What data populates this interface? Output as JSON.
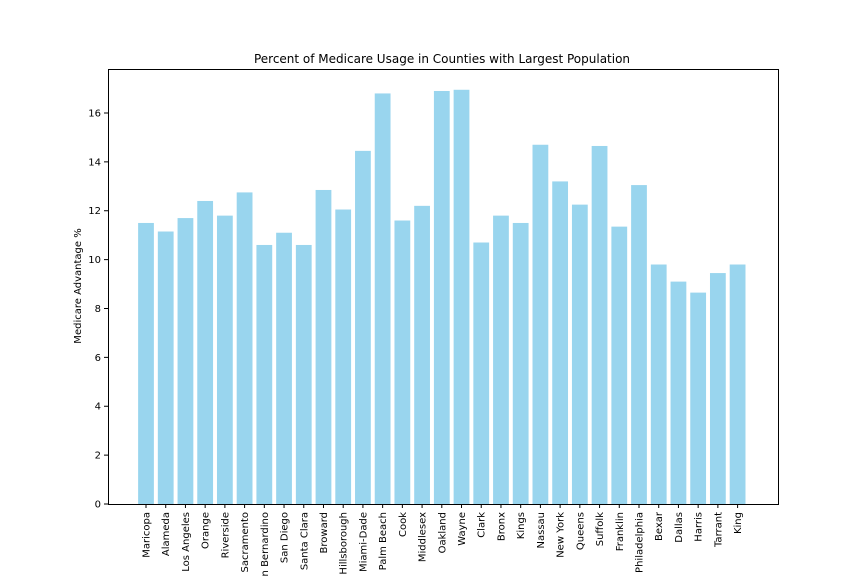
{
  "chart_data": {
    "type": "bar",
    "title": "Percent of Medicare Usage in Counties with Largest Population",
    "xlabel": "",
    "ylabel": "Medicare Advantage %",
    "ylim": [
      0,
      17.8
    ],
    "yticks": [
      0,
      2,
      4,
      6,
      8,
      10,
      12,
      14,
      16
    ],
    "grid": false,
    "bar_color": "#87CEEB",
    "categories": [
      "Maricopa",
      "Alameda",
      "Los Angeles",
      "Orange",
      "Riverside",
      "Sacramento",
      "n Bernardino",
      "San Diego",
      "Santa Clara",
      "Broward",
      "Hillsborough",
      "Miami-Dade",
      "Palm Beach",
      "Cook",
      "Middlesex",
      "Oakland",
      "Wayne",
      "Clark",
      "Bronx",
      "Kings",
      "Nassau",
      "New York",
      "Queens",
      "Suffolk",
      "Franklin",
      "Philadelphia",
      "Bexar",
      "Dallas",
      "Harris",
      "Tarrant",
      "King"
    ],
    "values": [
      11.5,
      11.15,
      11.7,
      12.4,
      11.8,
      12.75,
      10.6,
      11.1,
      10.6,
      12.85,
      12.05,
      14.45,
      16.8,
      11.6,
      12.2,
      16.9,
      16.95,
      10.7,
      11.8,
      11.5,
      14.7,
      13.2,
      12.25,
      14.65,
      11.35,
      13.05,
      9.8,
      9.1,
      8.65,
      9.45,
      9.8
    ]
  }
}
